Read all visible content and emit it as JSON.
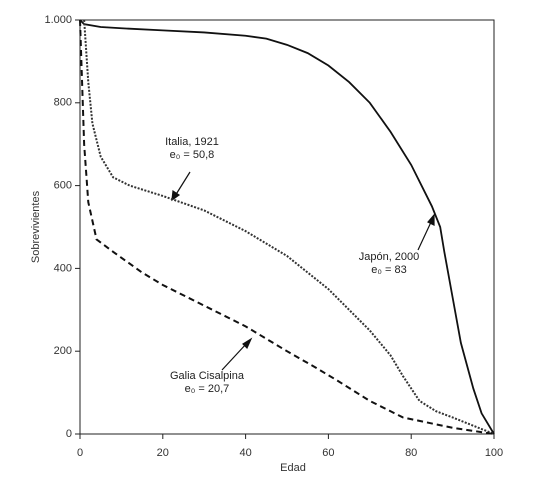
{
  "chart_data": {
    "type": "line",
    "xlabel": "Edad",
    "ylabel": "Sobrevivientes",
    "xlim": [
      0,
      100
    ],
    "xticks": [
      0,
      20,
      40,
      60,
      80,
      100
    ],
    "ylim": [
      0,
      1000
    ],
    "yticks": [
      0,
      200,
      400,
      600,
      800,
      {
        "value": 1000,
        "label": "1.000"
      }
    ],
    "series": [
      {
        "name": "Japón, 2000",
        "color": "#111111",
        "style": "solid",
        "x": [
          0,
          1,
          5,
          10,
          20,
          30,
          40,
          45,
          50,
          55,
          60,
          65,
          70,
          75,
          80,
          85,
          87,
          88,
          90,
          92,
          95,
          97,
          100
        ],
        "values": [
          1000,
          990,
          983,
          980,
          975,
          970,
          962,
          955,
          940,
          920,
          890,
          850,
          800,
          730,
          650,
          550,
          500,
          440,
          330,
          220,
          110,
          50,
          0
        ]
      },
      {
        "name": "Italia, 1921",
        "color": "#333333",
        "style": "dotted",
        "x": [
          1,
          2,
          3,
          5,
          8,
          12,
          20,
          30,
          40,
          50,
          60,
          70,
          75,
          78,
          82,
          86,
          90,
          95,
          100
        ],
        "values": [
          1000,
          850,
          750,
          670,
          620,
          600,
          575,
          540,
          490,
          430,
          350,
          250,
          190,
          140,
          80,
          55,
          40,
          20,
          0
        ]
      },
      {
        "name": "Galia Cisalpina",
        "color": "#111111",
        "style": "dashed",
        "x": [
          0,
          1,
          2,
          4,
          8,
          15,
          20,
          30,
          40,
          50,
          57,
          62,
          70,
          78,
          90,
          100
        ],
        "values": [
          1000,
          700,
          560,
          470,
          440,
          390,
          360,
          310,
          260,
          200,
          160,
          130,
          80,
          40,
          15,
          0
        ]
      }
    ],
    "annotations": [
      {
        "lines": [
          "Italia, 1921",
          "e₀ = 50,8"
        ]
      },
      {
        "lines": [
          "Japón, 2000",
          "e₀ = 83"
        ]
      },
      {
        "lines": [
          "Galia Cisalpina",
          "e₀ = 20,7"
        ]
      }
    ]
  }
}
